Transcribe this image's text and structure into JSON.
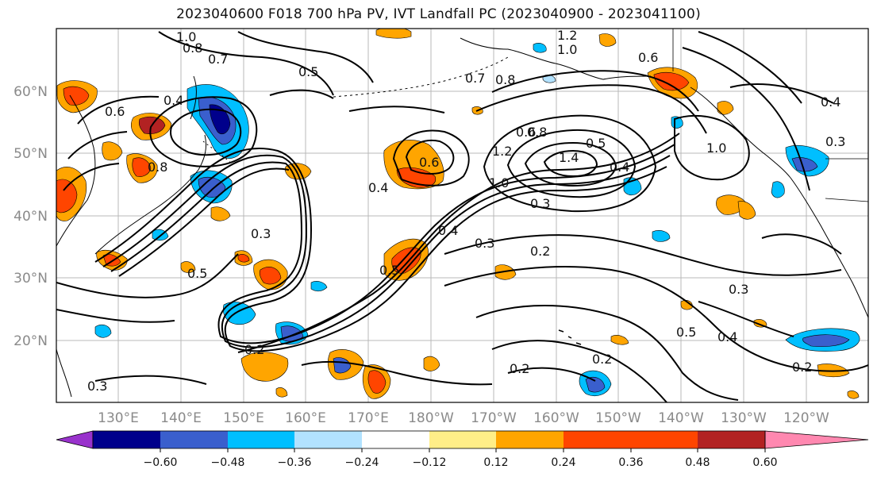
{
  "title": "2023040600 F018 700 hPa PV, IVT Landfall PC (2023040900 - 2023041100)",
  "map": {
    "lat_labels": [
      "60°N",
      "50°N",
      "40°N",
      "30°N",
      "20°N"
    ],
    "lon_labels": [
      "130°E",
      "140°E",
      "150°E",
      "160°E",
      "170°E",
      "180°W",
      "170°W",
      "160°W",
      "150°W",
      "140°W",
      "130°W",
      "120°W"
    ],
    "contour_labels": [
      "1.0",
      "0.8",
      "0.7",
      "0.5",
      "0.4",
      "0.6",
      "1.2",
      "1.0",
      "0.7",
      "0.8",
      "0.6",
      "0.4",
      "0.3",
      "1.0",
      "0.8",
      "0.6",
      "0.4",
      "0.6",
      "0.8",
      "1.2",
      "1.0",
      "1.4",
      "0.5",
      "0.4",
      "0.3",
      "0.2",
      "0.5",
      "0.3",
      "0.2",
      "0.4",
      "0.5",
      "0.3",
      "0.2",
      "0.2",
      "0.2",
      "0.4",
      "0.3",
      "0.5",
      "0.3"
    ]
  },
  "colorbar": {
    "ticks": [
      "−0.60",
      "−0.48",
      "−0.36",
      "−0.24",
      "−0.12",
      "0.12",
      "0.24",
      "0.36",
      "0.48",
      "0.60"
    ],
    "colors": [
      "#9932cc",
      "#00008b",
      "#3a5fcd",
      "#00bfff",
      "#b2e2ff",
      "#ffffff",
      "#ffee88",
      "#ffa500",
      "#ff4500",
      "#b22222",
      "#ff88b0"
    ]
  }
}
